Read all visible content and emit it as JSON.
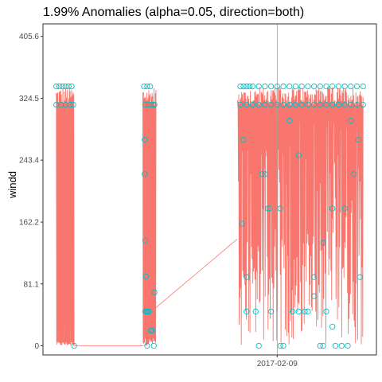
{
  "chart_data": {
    "type": "line",
    "title": "1.99% Anomalies (alpha=0.05, direction=both)",
    "xlabel": "",
    "ylabel": "windd",
    "ylim": [
      -12,
      422
    ],
    "y_ticks": [
      0,
      81.1,
      162.2,
      243.4,
      324.5,
      405.6
    ],
    "y_tick_labels": [
      "0",
      "81.1",
      "162.2",
      "243.4",
      "324.5",
      "405.6"
    ],
    "x_ticks": [
      {
        "value": 0.72,
        "label": "2017-02-09"
      }
    ],
    "vline_x": 0.72,
    "grid": false,
    "colors": {
      "series_line": "#f8766d",
      "anomaly_marker": "#00bfc4",
      "vline": "#a0a0a0",
      "panel_border": "#333333"
    },
    "series": [
      {
        "segments": [
          {
            "x_range": [
              0.0,
              0.058
            ],
            "pattern": "dense_high",
            "high": [
              315,
              340
            ],
            "low": [
              0,
              5
            ]
          },
          {
            "x_range": [
              0.282,
              0.325
            ],
            "pattern": "dense_high",
            "high": [
              315,
              340
            ],
            "low": [
              0,
              10
            ]
          },
          {
            "x_range": [
              0.59,
              1.0
            ],
            "pattern": "dense_mixed",
            "high": [
              315,
              340
            ],
            "low": [
              0,
              140
            ]
          }
        ],
        "connectors": [
          {
            "x": [
              0.058,
              0.285
            ],
            "y": [
              0,
              0
            ]
          },
          {
            "x": [
              0.31,
              0.59
            ],
            "y": [
              45,
              140
            ]
          }
        ]
      }
    ],
    "anomalies": {
      "x": [
        0.0,
        0.01,
        0.02,
        0.03,
        0.04,
        0.05,
        0.0,
        0.015,
        0.03,
        0.045,
        0.055,
        0.058,
        0.286,
        0.296,
        0.306,
        0.316,
        0.29,
        0.3,
        0.31,
        0.32,
        0.288,
        0.288,
        0.29,
        0.292,
        0.29,
        0.294,
        0.298,
        0.302,
        0.308,
        0.318,
        0.32,
        0.296,
        0.312,
        0.6,
        0.61,
        0.62,
        0.63,
        0.64,
        0.66,
        0.68,
        0.7,
        0.72,
        0.74,
        0.76,
        0.78,
        0.8,
        0.82,
        0.84,
        0.86,
        0.88,
        0.9,
        0.92,
        0.94,
        0.96,
        0.98,
        1.0,
        0.6,
        0.62,
        0.64,
        0.66,
        0.68,
        0.7,
        0.72,
        0.74,
        0.76,
        0.78,
        0.8,
        0.82,
        0.84,
        0.86,
        0.88,
        0.9,
        0.92,
        0.94,
        0.96,
        0.98,
        1.0,
        0.605,
        0.62,
        0.66,
        0.68,
        0.69,
        0.7,
        0.73,
        0.74,
        0.77,
        0.79,
        0.81,
        0.82,
        0.84,
        0.86,
        0.87,
        0.88,
        0.9,
        0.91,
        0.93,
        0.95,
        0.97,
        0.985,
        0.99,
        0.96,
        0.94,
        0.9,
        0.87,
        0.84,
        0.79,
        0.76,
        0.73,
        0.695,
        0.67,
        0.65,
        0.62,
        0.61
      ],
      "y": [
        340,
        340,
        340,
        340,
        340,
        340,
        316,
        316,
        316,
        316,
        316,
        0,
        340,
        340,
        340,
        316,
        316,
        316,
        316,
        316,
        270,
        225,
        138,
        91,
        45,
        45,
        45,
        45,
        20,
        0,
        70,
        0,
        20,
        340,
        340,
        340,
        340,
        340,
        340,
        340,
        340,
        340,
        340,
        340,
        340,
        340,
        340,
        340,
        340,
        340,
        340,
        340,
        340,
        340,
        340,
        340,
        316,
        316,
        316,
        316,
        316,
        316,
        316,
        316,
        316,
        316,
        316,
        316,
        316,
        316,
        316,
        316,
        316,
        316,
        316,
        316,
        316,
        160,
        90,
        0,
        225,
        180,
        45,
        0,
        0,
        45,
        45,
        45,
        45,
        90,
        0,
        0,
        45,
        25,
        0,
        0,
        0,
        225,
        270,
        90,
        295,
        180,
        180,
        135,
        65,
        250,
        295,
        180,
        180,
        225,
        45,
        45,
        270
      ]
    }
  }
}
